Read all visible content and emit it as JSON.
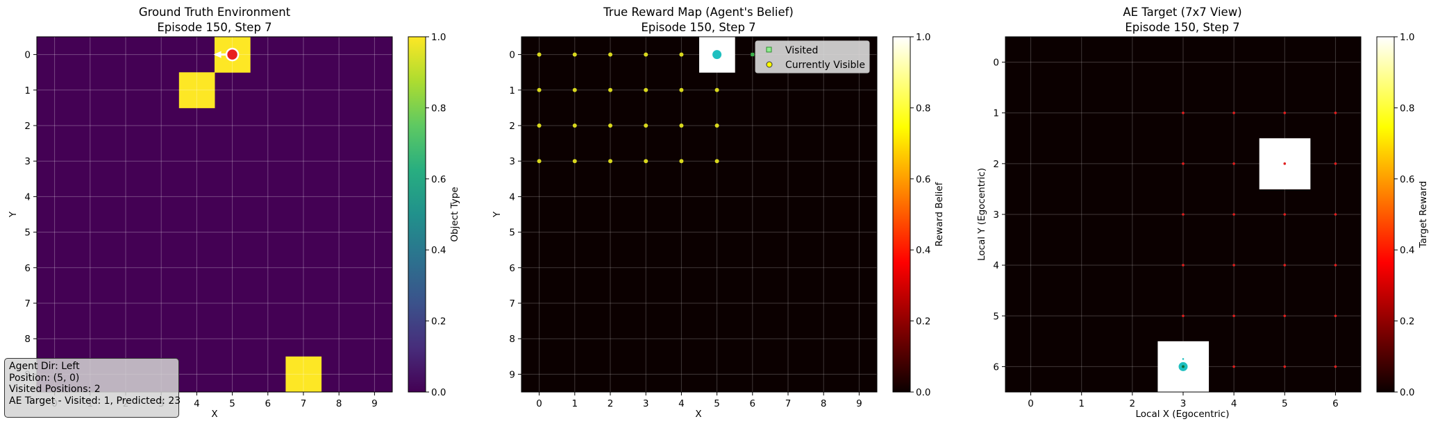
{
  "chart_data": [
    {
      "type": "heatmap",
      "title_line1": "Ground Truth Environment",
      "title_line2": "Episode 150, Step 7",
      "xlabel": "X",
      "ylabel": "Y",
      "x_ticks": [
        "0",
        "1",
        "2",
        "3",
        "4",
        "5",
        "6",
        "7",
        "8",
        "9"
      ],
      "y_ticks": [
        "0",
        "1",
        "2",
        "3",
        "4",
        "5",
        "6",
        "7",
        "8",
        "9"
      ],
      "grid": true,
      "colormap": "viridis",
      "colorbar_label": "Object Type",
      "colorbar_range": [
        0,
        1
      ],
      "colorbar_ticks": [
        "0.0",
        "0.2",
        "0.4",
        "0.6",
        "0.8",
        "1.0"
      ],
      "cells_value_1": [
        [
          5,
          0
        ],
        [
          4,
          1
        ],
        [
          7,
          9
        ]
      ],
      "agent": {
        "x": 5,
        "y": 0,
        "direction": "Left",
        "color": "#e81e1e"
      }
    },
    {
      "type": "heatmap",
      "title_line1": "True Reward Map (Agent's Belief)",
      "title_line2": "Episode 150, Step 7",
      "xlabel": "X",
      "ylabel": "Y",
      "x_ticks": [
        "0",
        "1",
        "2",
        "3",
        "4",
        "5",
        "6",
        "7",
        "8",
        "9"
      ],
      "y_ticks": [
        "0",
        "1",
        "2",
        "3",
        "4",
        "5",
        "6",
        "7",
        "8",
        "9"
      ],
      "grid": true,
      "colormap": "hot",
      "colorbar_label": "Reward Belief",
      "colorbar_range": [
        0,
        1
      ],
      "colorbar_ticks": [
        "0.0",
        "0.2",
        "0.4",
        "0.6",
        "0.8",
        "1.0"
      ],
      "cells_value_1": [
        [
          5,
          0
        ]
      ],
      "visited_points": [
        [
          5,
          0
        ],
        [
          6,
          0
        ]
      ],
      "visible_points": [
        [
          0,
          0
        ],
        [
          1,
          0
        ],
        [
          2,
          0
        ],
        [
          3,
          0
        ],
        [
          4,
          0
        ],
        [
          0,
          1
        ],
        [
          1,
          1
        ],
        [
          2,
          1
        ],
        [
          3,
          1
        ],
        [
          4,
          1
        ],
        [
          5,
          1
        ],
        [
          0,
          2
        ],
        [
          1,
          2
        ],
        [
          2,
          2
        ],
        [
          3,
          2
        ],
        [
          4,
          2
        ],
        [
          5,
          2
        ],
        [
          0,
          3
        ],
        [
          1,
          3
        ],
        [
          2,
          3
        ],
        [
          3,
          3
        ],
        [
          4,
          3
        ],
        [
          5,
          3
        ]
      ],
      "agent": {
        "x": 5,
        "y": 0,
        "color": "#1fbfbf"
      },
      "legend": {
        "position": "top-right",
        "entries": [
          "Visited",
          "Currently Visible"
        ]
      }
    },
    {
      "type": "heatmap",
      "title_line1": "AE Target (7x7 View)",
      "title_line2": "Episode 150, Step 7",
      "xlabel": "Local X (Egocentric)",
      "ylabel": "Local Y (Egocentric)",
      "x_ticks": [
        "0",
        "1",
        "2",
        "3",
        "4",
        "5",
        "6"
      ],
      "y_ticks": [
        "0",
        "1",
        "2",
        "3",
        "4",
        "5",
        "6"
      ],
      "grid": true,
      "colormap": "hot",
      "colorbar_label": "Target Reward",
      "colorbar_range": [
        0,
        1
      ],
      "colorbar_ticks": [
        "0.0",
        "0.2",
        "0.4",
        "0.6",
        "0.8",
        "1.0"
      ],
      "cells_value_1": [
        [
          5,
          2
        ],
        [
          3,
          6
        ]
      ],
      "predicted_points": [
        [
          3,
          1
        ],
        [
          4,
          1
        ],
        [
          5,
          1
        ],
        [
          6,
          1
        ],
        [
          3,
          2
        ],
        [
          4,
          2
        ],
        [
          5,
          2
        ],
        [
          6,
          2
        ],
        [
          3,
          3
        ],
        [
          4,
          3
        ],
        [
          5,
          3
        ],
        [
          6,
          3
        ],
        [
          3,
          4
        ],
        [
          4,
          4
        ],
        [
          5,
          4
        ],
        [
          6,
          4
        ],
        [
          3,
          5
        ],
        [
          4,
          5
        ],
        [
          5,
          5
        ],
        [
          6,
          5
        ],
        [
          4,
          6
        ],
        [
          5,
          6
        ],
        [
          6,
          6
        ]
      ],
      "agent": {
        "x": 3,
        "y": 6,
        "color": "#1fbfbf"
      }
    }
  ],
  "info_box": {
    "line1": "Agent Dir: Left",
    "line2": "Position: (5, 0)",
    "line3": "Visited Positions: 2",
    "line4": "AE Target - Visited: 1, Predicted: 23"
  }
}
